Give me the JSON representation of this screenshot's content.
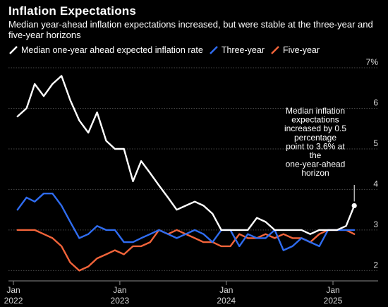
{
  "title": "Inflation Expectations",
  "subtitle": "Median year-ahead inflation expectations increased, but were stable at the three-year and five-year horizons",
  "legend": [
    {
      "label": "Median one-year ahead expected inflation rate",
      "color": "#ffffff"
    },
    {
      "label": "Three-year",
      "color": "#2f6cf0"
    },
    {
      "label": "Five-year",
      "color": "#f2643a"
    }
  ],
  "annotation": {
    "lines": [
      "Median inflation",
      "expectations",
      "increased by 0.5",
      "percentage",
      "point to 3.6% at",
      "the",
      "one-year-ahead",
      "horizon"
    ]
  },
  "chart_data": {
    "type": "line",
    "title": "Inflation Expectations",
    "x_axis": {
      "type": "date",
      "range": [
        "2021-12-15",
        "2025-04-15"
      ],
      "ticks": [
        {
          "date": "2022-01-01",
          "line1": "Jan",
          "line2": "2022"
        },
        {
          "date": "2023-01-01",
          "line1": "Jan",
          "line2": "2023"
        },
        {
          "date": "2024-01-01",
          "line1": "Jan",
          "line2": "2024"
        },
        {
          "date": "2025-01-01",
          "line1": "Jan",
          "line2": "2025"
        }
      ]
    },
    "y_axis": {
      "range": [
        1.85,
        7.0
      ],
      "ticks": [
        2,
        3,
        4,
        5,
        6,
        7
      ],
      "tick_labels": [
        "2",
        "3",
        "4",
        "5",
        "6",
        "7%"
      ],
      "position": "right",
      "grid": true
    },
    "x": [
      "2022-01",
      "2022-02",
      "2022-03",
      "2022-04",
      "2022-05",
      "2022-06",
      "2022-07",
      "2022-08",
      "2022-09",
      "2022-10",
      "2022-11",
      "2022-12",
      "2023-01",
      "2023-02",
      "2023-03",
      "2023-04",
      "2023-05",
      "2023-06",
      "2023-07",
      "2023-08",
      "2023-09",
      "2023-10",
      "2023-11",
      "2023-12",
      "2024-01",
      "2024-02",
      "2024-03",
      "2024-04",
      "2024-05",
      "2024-06",
      "2024-07",
      "2024-08",
      "2024-09",
      "2024-10",
      "2024-11",
      "2024-12",
      "2025-01",
      "2025-02",
      "2025-03"
    ],
    "series": [
      {
        "name": "Median one-year ahead expected inflation rate",
        "color": "#ffffff",
        "values": [
          5.8,
          6.0,
          6.6,
          6.3,
          6.6,
          6.8,
          6.2,
          5.7,
          5.4,
          5.9,
          5.2,
          5.0,
          5.0,
          4.2,
          4.7,
          4.4,
          4.1,
          3.8,
          3.5,
          3.6,
          3.7,
          3.6,
          3.4,
          3.0,
          3.0,
          3.0,
          3.0,
          3.3,
          3.2,
          3.0,
          3.0,
          3.0,
          3.0,
          2.9,
          3.0,
          3.0,
          3.0,
          3.1,
          3.6
        ]
      },
      {
        "name": "Three-year",
        "color": "#2f6cf0",
        "values": [
          3.5,
          3.8,
          3.7,
          3.9,
          3.9,
          3.6,
          3.2,
          2.8,
          2.9,
          3.1,
          3.0,
          3.0,
          2.7,
          2.7,
          2.8,
          2.9,
          3.0,
          2.9,
          2.8,
          2.9,
          3.0,
          2.9,
          2.7,
          3.0,
          3.0,
          2.6,
          2.9,
          2.8,
          2.8,
          3.0,
          2.5,
          2.6,
          2.8,
          2.7,
          2.6,
          3.0,
          3.0,
          3.0,
          3.0
        ]
      },
      {
        "name": "Five-year",
        "color": "#f2643a",
        "values": [
          3.0,
          3.0,
          3.0,
          2.9,
          2.8,
          2.6,
          2.2,
          2.0,
          2.1,
          2.3,
          2.4,
          2.5,
          2.4,
          2.6,
          2.6,
          2.7,
          3.0,
          2.9,
          3.0,
          2.9,
          2.8,
          2.7,
          2.7,
          2.6,
          2.6,
          2.9,
          2.8,
          2.8,
          2.9,
          2.8,
          2.9,
          2.8,
          2.8,
          2.7,
          2.9,
          3.0,
          3.0,
          3.0,
          2.9
        ]
      }
    ],
    "highlight": {
      "series_index": 0,
      "point_index": 38
    }
  }
}
